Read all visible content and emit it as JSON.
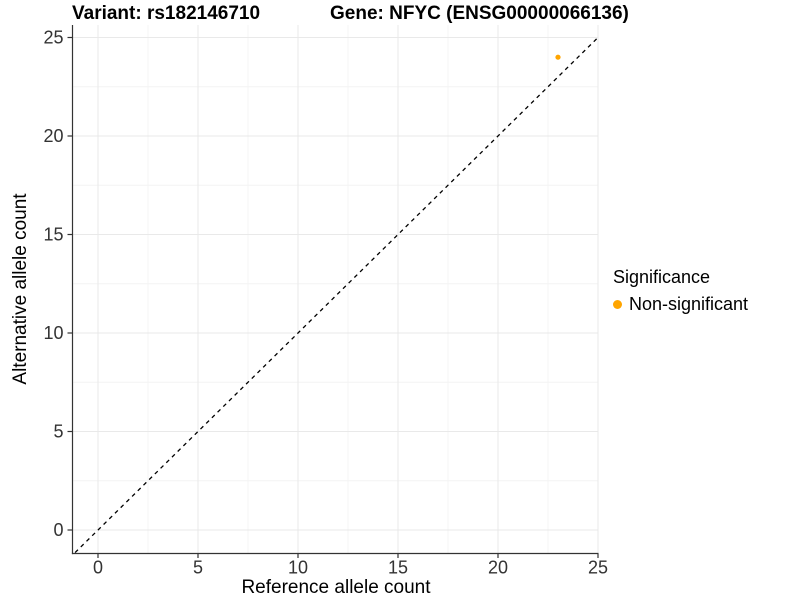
{
  "chart_data": {
    "type": "scatter",
    "title_left": "Variant: rs182146710",
    "title_right": "Gene: NFYC (ENSG00000066136)",
    "xlabel": "Reference allele count",
    "ylabel": "Alternative allele count",
    "xlim": [
      -1.3,
      25.1
    ],
    "ylim": [
      -1.2,
      25.6
    ],
    "x_ticks": [
      0,
      5,
      10,
      15,
      20,
      25
    ],
    "y_ticks": [
      0,
      5,
      10,
      15,
      20,
      25
    ],
    "x_minor_ticks": [
      2.5,
      7.5,
      12.5,
      17.5,
      22.5
    ],
    "y_minor_ticks": [
      2.5,
      7.5,
      12.5,
      17.5,
      22.5
    ],
    "grid": "major+minor",
    "identity_line": {
      "type": "abline",
      "slope": 1,
      "intercept": 0,
      "style": "dashed",
      "color": "#000000"
    },
    "series": [
      {
        "name": "Non-significant",
        "color": "#FFA500",
        "points": [
          {
            "x": 23,
            "y": 24
          }
        ]
      }
    ],
    "legend": {
      "title": "Significance",
      "position": "right",
      "items": [
        {
          "label": "Non-significant",
          "color": "#FFA500",
          "marker": "circle"
        }
      ]
    },
    "colors": {
      "axis": "#333333",
      "tick_text": "#333333",
      "grid_major": "#E9E9E9",
      "grid_minor": "#F4F4F4",
      "background": "#FFFFFF"
    }
  }
}
